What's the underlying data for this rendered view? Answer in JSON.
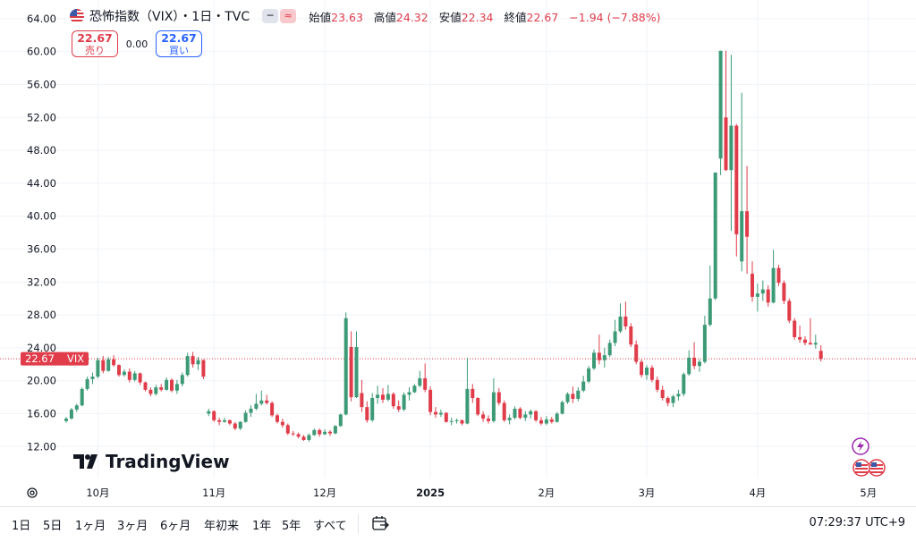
{
  "header": {
    "title": "恐怖指数（VIX）・1日・TVC",
    "ohlc": [
      {
        "label": "始値",
        "value": "23.63"
      },
      {
        "label": "高値",
        "value": "24.32"
      },
      {
        "label": "安値",
        "value": "22.34"
      },
      {
        "label": "終値",
        "value": "22.67"
      }
    ],
    "change": "−1.94 (−7.88%)"
  },
  "trade": {
    "sell_price": "22.67",
    "sell_label": "売り",
    "spread": "0.00",
    "buy_price": "22.67",
    "buy_label": "買い"
  },
  "logo_text": "TradingView",
  "bottom": {
    "ranges": [
      "1日",
      "5日",
      "1ヶ月",
      "3ヶ月",
      "6ヶ月",
      "年初来",
      "1年",
      "5年",
      "すべて"
    ],
    "clock": "07:29:37 UTC+9"
  },
  "colors": {
    "up": "#26a69a",
    "up_body": "#3d9a76",
    "down": "#e03c4a",
    "grid": "#f0f3fa",
    "axis_text": "#131722"
  },
  "chart_data": {
    "type": "candlestick",
    "y_ticks": [
      "12.00",
      "16.00",
      "20.00",
      "24.00",
      "28.00",
      "32.00",
      "36.00",
      "40.00",
      "44.00",
      "48.00",
      "52.00",
      "56.00",
      "60.00",
      "64.00"
    ],
    "ylim": [
      10,
      65
    ],
    "x_labels": [
      {
        "label": "10月",
        "index": 6
      },
      {
        "label": "11月",
        "index": 28
      },
      {
        "label": "12月",
        "index": 49
      },
      {
        "label": "2025",
        "index": 69
      },
      {
        "label": "2月",
        "index": 91
      },
      {
        "label": "3月",
        "index": 110
      },
      {
        "label": "4月",
        "index": 131
      },
      {
        "label": "5月",
        "index": 152
      }
    ],
    "last_price": 22.67,
    "last_price_label": "22.67",
    "symbol_label": "VIX",
    "candles": [
      [
        15.1,
        15.6,
        14.9,
        15.4
      ],
      [
        15.4,
        16.7,
        15.3,
        16.5
      ],
      [
        16.5,
        17.2,
        16.2,
        17.0
      ],
      [
        17.0,
        19.2,
        16.9,
        19.0
      ],
      [
        19.0,
        20.5,
        18.8,
        20.2
      ],
      [
        20.2,
        21.0,
        19.6,
        20.5
      ],
      [
        20.5,
        22.8,
        20.3,
        22.5
      ],
      [
        22.5,
        23.0,
        20.9,
        21.2
      ],
      [
        21.2,
        22.9,
        21.1,
        22.6
      ],
      [
        22.6,
        23.1,
        21.7,
        21.9
      ],
      [
        21.9,
        22.0,
        20.5,
        20.7
      ],
      [
        20.7,
        21.4,
        20.5,
        21.1
      ],
      [
        21.1,
        21.5,
        19.8,
        20.1
      ],
      [
        20.1,
        21.2,
        19.9,
        20.9
      ],
      [
        20.9,
        21.0,
        19.5,
        19.8
      ],
      [
        19.8,
        19.9,
        18.7,
        18.9
      ],
      [
        18.9,
        19.2,
        18.1,
        18.4
      ],
      [
        18.4,
        19.5,
        18.2,
        19.2
      ],
      [
        19.2,
        19.6,
        18.7,
        18.9
      ],
      [
        18.9,
        20.4,
        18.8,
        20.1
      ],
      [
        20.1,
        20.3,
        18.6,
        18.8
      ],
      [
        18.8,
        20.1,
        18.4,
        19.6
      ],
      [
        19.6,
        21.0,
        19.3,
        20.7
      ],
      [
        20.7,
        23.4,
        20.5,
        23.0
      ],
      [
        23.0,
        23.5,
        21.6,
        22.0
      ],
      [
        22.0,
        22.9,
        21.3,
        22.5
      ],
      [
        22.5,
        22.6,
        20.2,
        20.5
      ],
      [
        16.0,
        16.6,
        15.7,
        16.3
      ],
      [
        16.3,
        16.4,
        15.0,
        15.2
      ],
      [
        15.2,
        15.5,
        14.6,
        15.0
      ],
      [
        15.0,
        15.5,
        14.9,
        15.2
      ],
      [
        15.2,
        15.3,
        14.6,
        14.8
      ],
      [
        14.8,
        15.0,
        14.0,
        14.2
      ],
      [
        14.2,
        15.1,
        14.0,
        15.0
      ],
      [
        15.0,
        16.4,
        14.9,
        16.1
      ],
      [
        16.1,
        17.0,
        15.6,
        16.6
      ],
      [
        16.6,
        18.4,
        16.4,
        17.2
      ],
      [
        17.2,
        18.8,
        17.0,
        17.6
      ],
      [
        17.6,
        18.3,
        17.1,
        17.3
      ],
      [
        17.3,
        17.5,
        15.6,
        15.8
      ],
      [
        15.8,
        16.0,
        14.8,
        15.0
      ],
      [
        15.0,
        15.4,
        14.3,
        14.6
      ],
      [
        14.6,
        14.8,
        13.4,
        13.6
      ],
      [
        13.6,
        13.9,
        13.3,
        13.5
      ],
      [
        13.5,
        13.7,
        13.0,
        13.2
      ],
      [
        13.2,
        13.4,
        12.7,
        12.8
      ],
      [
        12.8,
        13.6,
        12.6,
        13.4
      ],
      [
        13.4,
        14.2,
        13.3,
        14.0
      ],
      [
        14.0,
        14.2,
        13.2,
        13.5
      ],
      [
        13.5,
        14.1,
        13.4,
        13.8
      ],
      [
        13.8,
        14.0,
        13.3,
        13.6
      ],
      [
        13.6,
        14.6,
        13.5,
        14.5
      ],
      [
        14.5,
        16.0,
        14.4,
        15.9
      ],
      [
        15.9,
        28.3,
        15.8,
        27.6
      ],
      [
        24.1,
        26.0,
        17.5,
        18.0
      ],
      [
        18.0,
        26.0,
        17.9,
        24.1
      ],
      [
        18.5,
        20.1,
        16.2,
        16.8
      ],
      [
        16.8,
        17.5,
        14.9,
        15.2
      ],
      [
        15.2,
        18.5,
        15.0,
        17.9
      ],
      [
        17.9,
        19.4,
        17.2,
        18.3
      ],
      [
        18.3,
        19.1,
        17.3,
        17.7
      ],
      [
        17.7,
        19.5,
        17.5,
        18.4
      ],
      [
        18.4,
        18.6,
        16.6,
        16.9
      ],
      [
        16.9,
        17.6,
        16.2,
        16.5
      ],
      [
        16.5,
        18.6,
        16.3,
        18.3
      ],
      [
        18.3,
        19.2,
        17.6,
        18.6
      ],
      [
        18.6,
        19.6,
        18.5,
        19.4
      ],
      [
        19.4,
        21.2,
        19.2,
        20.3
      ],
      [
        20.3,
        22.1,
        18.6,
        18.9
      ],
      [
        18.9,
        19.3,
        15.8,
        16.2
      ],
      [
        16.2,
        16.8,
        15.5,
        15.9
      ],
      [
        15.9,
        16.5,
        15.6,
        16.1
      ],
      [
        16.1,
        16.2,
        14.9,
        15.0
      ],
      [
        15.0,
        15.5,
        14.6,
        15.1
      ],
      [
        15.1,
        15.4,
        14.8,
        15.2
      ],
      [
        15.2,
        15.3,
        14.6,
        14.8
      ],
      [
        14.8,
        22.8,
        14.7,
        19.0
      ],
      [
        19.0,
        19.6,
        17.3,
        17.9
      ],
      [
        17.9,
        18.0,
        15.7,
        15.9
      ],
      [
        15.9,
        16.3,
        15.0,
        15.4
      ],
      [
        15.4,
        15.8,
        14.8,
        15.1
      ],
      [
        15.1,
        20.3,
        14.9,
        18.6
      ],
      [
        18.6,
        19.1,
        17.0,
        17.3
      ],
      [
        17.3,
        17.6,
        15.0,
        15.2
      ],
      [
        15.2,
        15.9,
        14.7,
        15.5
      ],
      [
        15.5,
        16.9,
        15.3,
        16.6
      ],
      [
        16.6,
        16.8,
        15.3,
        15.5
      ],
      [
        15.5,
        16.3,
        15.1,
        15.9
      ],
      [
        15.9,
        16.5,
        15.4,
        16.3
      ],
      [
        16.3,
        16.4,
        15.0,
        15.2
      ],
      [
        15.2,
        15.6,
        14.6,
        14.8
      ],
      [
        14.8,
        15.7,
        14.6,
        15.3
      ],
      [
        15.3,
        15.6,
        14.8,
        15.0
      ],
      [
        15.0,
        16.2,
        14.9,
        16.0
      ],
      [
        16.0,
        17.6,
        15.9,
        17.4
      ],
      [
        17.4,
        18.6,
        17.2,
        18.4
      ],
      [
        18.4,
        19.3,
        17.3,
        17.8
      ],
      [
        17.8,
        19.2,
        17.5,
        18.8
      ],
      [
        18.8,
        20.6,
        18.6,
        19.9
      ],
      [
        19.9,
        21.8,
        19.7,
        21.5
      ],
      [
        21.5,
        23.8,
        21.3,
        23.4
      ],
      [
        23.4,
        25.6,
        22.0,
        22.5
      ],
      [
        22.5,
        24.0,
        21.6,
        23.1
      ],
      [
        23.1,
        25.0,
        22.9,
        24.6
      ],
      [
        24.6,
        27.4,
        24.2,
        26.0
      ],
      [
        26.0,
        29.4,
        25.8,
        27.8
      ],
      [
        27.8,
        29.6,
        26.2,
        26.6
      ],
      [
        26.6,
        27.0,
        24.1,
        24.4
      ],
      [
        24.4,
        24.9,
        22.0,
        22.3
      ],
      [
        22.3,
        22.6,
        20.4,
        20.7
      ],
      [
        20.7,
        21.9,
        20.1,
        21.6
      ],
      [
        21.6,
        21.9,
        19.8,
        20.1
      ],
      [
        20.1,
        20.5,
        18.6,
        18.9
      ],
      [
        18.9,
        19.4,
        17.6,
        17.9
      ],
      [
        17.9,
        18.1,
        16.9,
        17.3
      ],
      [
        17.3,
        18.3,
        16.8,
        18.1
      ],
      [
        18.1,
        18.9,
        17.6,
        18.4
      ],
      [
        18.4,
        21.0,
        18.1,
        20.8
      ],
      [
        20.8,
        23.7,
        20.6,
        22.8
      ],
      [
        22.8,
        24.7,
        21.4,
        21.8
      ],
      [
        21.8,
        22.6,
        21.1,
        22.3
      ],
      [
        22.3,
        27.9,
        22.1,
        26.8
      ],
      [
        26.8,
        34.0,
        26.6,
        30.0
      ],
      [
        30.0,
        45.3,
        29.8,
        45.3
      ],
      [
        47.0,
        60.1,
        45.0,
        60.1
      ],
      [
        52.0,
        60.1,
        45.5,
        45.6
      ],
      [
        45.6,
        59.6,
        38.2,
        51.0
      ],
      [
        51.0,
        51.2,
        35.1,
        37.8
      ],
      [
        34.5,
        55.0,
        33.3,
        40.6
      ],
      [
        40.6,
        46.1,
        33.0,
        37.5
      ],
      [
        33.0,
        34.5,
        29.6,
        30.2
      ],
      [
        30.2,
        31.8,
        28.4,
        30.6
      ],
      [
        30.6,
        32.2,
        29.7,
        31.1
      ],
      [
        31.1,
        31.6,
        29.0,
        29.5
      ],
      [
        29.5,
        35.9,
        29.4,
        33.7
      ],
      [
        33.7,
        34.1,
        31.5,
        31.9
      ],
      [
        31.9,
        32.2,
        29.3,
        29.7
      ],
      [
        29.7,
        30.0,
        27.0,
        27.3
      ],
      [
        27.3,
        27.6,
        25.0,
        25.3
      ],
      [
        25.3,
        26.7,
        24.6,
        25.0
      ],
      [
        25.0,
        25.4,
        24.3,
        24.6
      ],
      [
        24.6,
        27.6,
        24.4,
        24.4
      ],
      [
        24.4,
        25.6,
        23.9,
        24.6
      ],
      [
        23.63,
        24.32,
        22.34,
        22.67
      ]
    ]
  }
}
